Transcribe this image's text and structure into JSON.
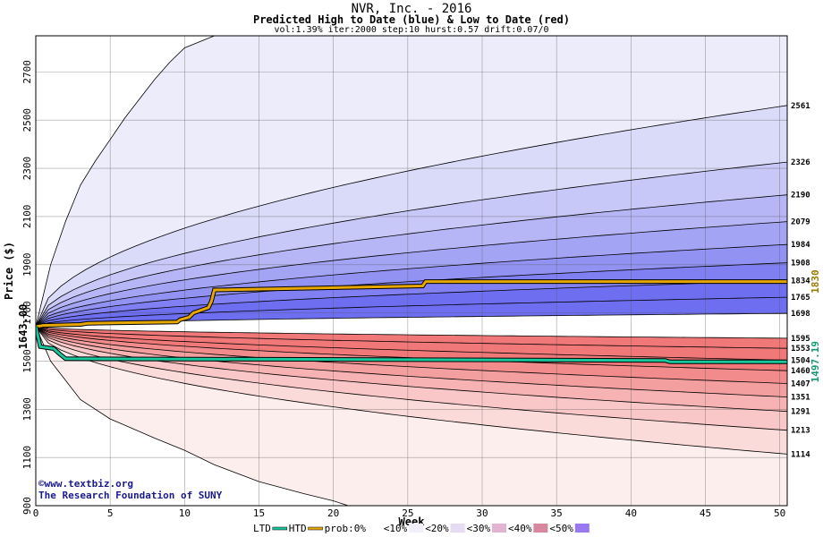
{
  "chart_data": {
    "type": "area",
    "title": "NVR, Inc. - 2016",
    "subtitle": "Predicted High to Date (blue) &  Low to Date (red)",
    "params": "vol:1.39% iter:2000 step:10 hurst:0.57 drift:0.07/0",
    "xlabel": "Week",
    "ylabel": "Price ($)",
    "xlim": [
      0,
      50.5
    ],
    "ylim": [
      900,
      2850
    ],
    "x_ticks": [
      5,
      10,
      15,
      20,
      25,
      30,
      35,
      40,
      45,
      50
    ],
    "y_ticks": [
      900,
      1100,
      1300,
      1500,
      1700,
      1900,
      2100,
      2300,
      2500,
      2700
    ],
    "start_price": 1643.0,
    "start_label": "1643.00",
    "grid": true,
    "high_bands_end": [
      2561,
      2326,
      2190,
      2079,
      1984,
      1908,
      1834,
      1765,
      1698
    ],
    "low_bands_end": [
      1595,
      1553,
      1504,
      1460,
      1407,
      1351,
      1291,
      1213,
      1114
    ],
    "right_labels": [
      "2561",
      "2326",
      "2190",
      "2079",
      "1984",
      "1908",
      "1834",
      "1765",
      "1698",
      "1595",
      "1553",
      "1504",
      "1460",
      "1407",
      "1351",
      "1291",
      "1213",
      "1114"
    ],
    "outer_high_curve": [
      [
        0,
        1643
      ],
      [
        1,
        1900
      ],
      [
        2,
        2080
      ],
      [
        3,
        2230
      ],
      [
        4,
        2330
      ],
      [
        5,
        2420
      ],
      [
        6,
        2510
      ],
      [
        7,
        2590
      ],
      [
        8,
        2670
      ],
      [
        9,
        2740
      ],
      [
        10,
        2800
      ],
      [
        12,
        2850
      ]
    ],
    "outer_low_curve": [
      [
        0,
        1643
      ],
      [
        1,
        1500
      ],
      [
        2,
        1420
      ],
      [
        3,
        1340
      ],
      [
        5,
        1260
      ],
      [
        8,
        1180
      ],
      [
        10,
        1130
      ],
      [
        12,
        1070
      ],
      [
        15,
        1000
      ],
      [
        18,
        950
      ],
      [
        20,
        920
      ],
      [
        21,
        900
      ]
    ],
    "htd_series": {
      "name": "HTD",
      "color": "#e6a800",
      "end_value": 1830,
      "end_label": "1830",
      "points": [
        [
          0,
          1643
        ],
        [
          0.5,
          1648
        ],
        [
          3,
          1652
        ],
        [
          3.5,
          1657
        ],
        [
          9.5,
          1662
        ],
        [
          9.7,
          1672
        ],
        [
          10.3,
          1682
        ],
        [
          10.6,
          1700
        ],
        [
          11.6,
          1722
        ],
        [
          11.8,
          1748
        ],
        [
          12,
          1795
        ],
        [
          26,
          1812
        ],
        [
          26.2,
          1830
        ],
        [
          50.5,
          1830
        ]
      ]
    },
    "ltd_series": {
      "name": "LTD",
      "color": "#19c79c",
      "end_value": 1497.19,
      "end_label": "1497.19",
      "points": [
        [
          0,
          1643
        ],
        [
          0.3,
          1560
        ],
        [
          1.2,
          1552
        ],
        [
          1.6,
          1530
        ],
        [
          2,
          1510
        ],
        [
          42.3,
          1503
        ],
        [
          42.6,
          1497
        ],
        [
          50.5,
          1497
        ]
      ]
    },
    "legend": {
      "items": [
        "LTD",
        "HTD",
        "prob:0%",
        "<10%",
        "<20%",
        "<30%",
        "<40%",
        "<50%"
      ],
      "ltd_color": "#19c79c",
      "htd_color": "#e6a800",
      "swatches": [
        "#ffffff",
        "#f2eefa",
        "#e6dcf2",
        "#e3b4d2",
        "#d8889e",
        "#9a78f0"
      ]
    },
    "colors": {
      "blue_band_light": "#ececfb",
      "blue_band_dark": "#6e6ef0",
      "red_band_light": "#fdeeee",
      "red_band_dark": "#f07878"
    }
  },
  "watermark": {
    "line1": "©www.textbiz.org",
    "line2": "The Research Foundation of SUNY"
  }
}
